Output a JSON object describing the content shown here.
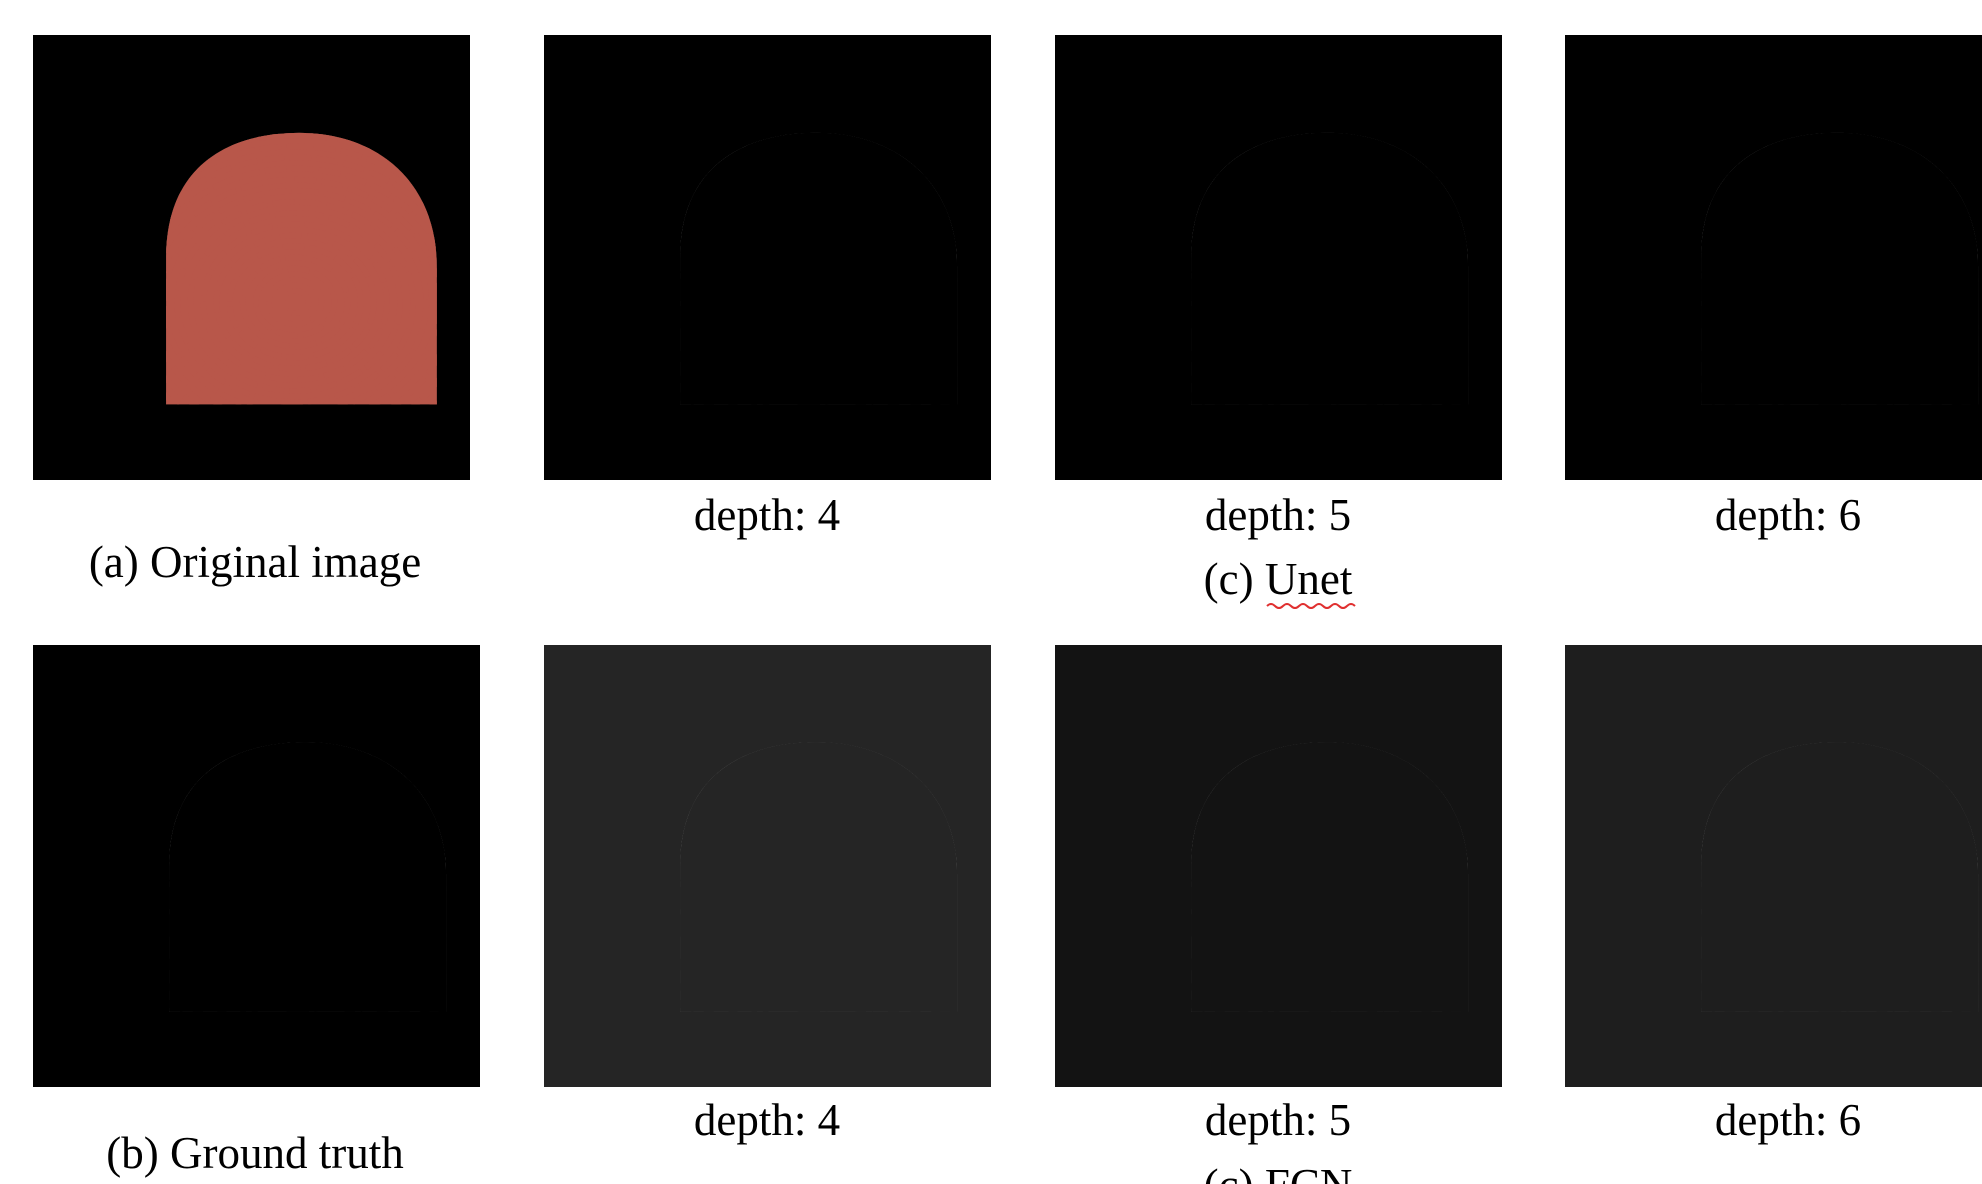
{
  "rows": [
    {
      "label": "(a) Original image",
      "depths": [
        "depth: 4",
        "depth: 5",
        "depth: 6"
      ],
      "group": "(c) Unet"
    },
    {
      "label": "(b) Ground truth",
      "depths": [
        "depth: 4",
        "depth: 5",
        "depth: 6"
      ],
      "group": "(c) FCN"
    }
  ]
}
